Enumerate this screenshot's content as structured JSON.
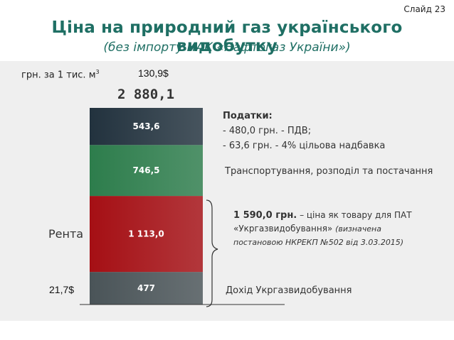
{
  "slide_label": "Слайд 23",
  "title": "Ціна на природний газ українського видобутку",
  "subtitle": "(без імпорту НАК «Нафтогаз України»)",
  "unit_label": "грн. за 1 тис. м",
  "unit_sup": "3",
  "usd_top": "130,9$",
  "usd_bottom": "21,7$",
  "rent_label": "Рента",
  "chart_data": {
    "type": "bar",
    "stacked": true,
    "categories": [
      ""
    ],
    "total_label": "2 880,1",
    "total": 2880.1,
    "series": [
      {
        "name": "",
        "value": 477,
        "label": "477",
        "color": "#4a5458"
      },
      {
        "name": "",
        "value": 1113,
        "label": "1 113,0",
        "color": "#a50f14"
      },
      {
        "name": "",
        "value": 746.5,
        "label": "746,5",
        "color": "#2d7d4c"
      },
      {
        "name": "",
        "value": 543.6,
        "label": "543,6",
        "color": "#22323e"
      }
    ]
  },
  "annotations": {
    "tax_heading": "Податки:",
    "tax_line1": "- 480,0 грн. - ПДВ;",
    "tax_line2": "- 63,6 грн. - 4% цільова надбавка",
    "transport": "Транспортування, розподіл та постачання",
    "price_bold": "1 590,0 грн.",
    "price_rest": " – ціна як товару для ПАТ",
    "price_line2_a": "«Укргазвидобування» ",
    "price_line2_b": "(визначена",
    "price_line3": "постановою НКРЕКП №502 від 3.03.2015)",
    "income": "Дохід Укргазвидобування"
  }
}
